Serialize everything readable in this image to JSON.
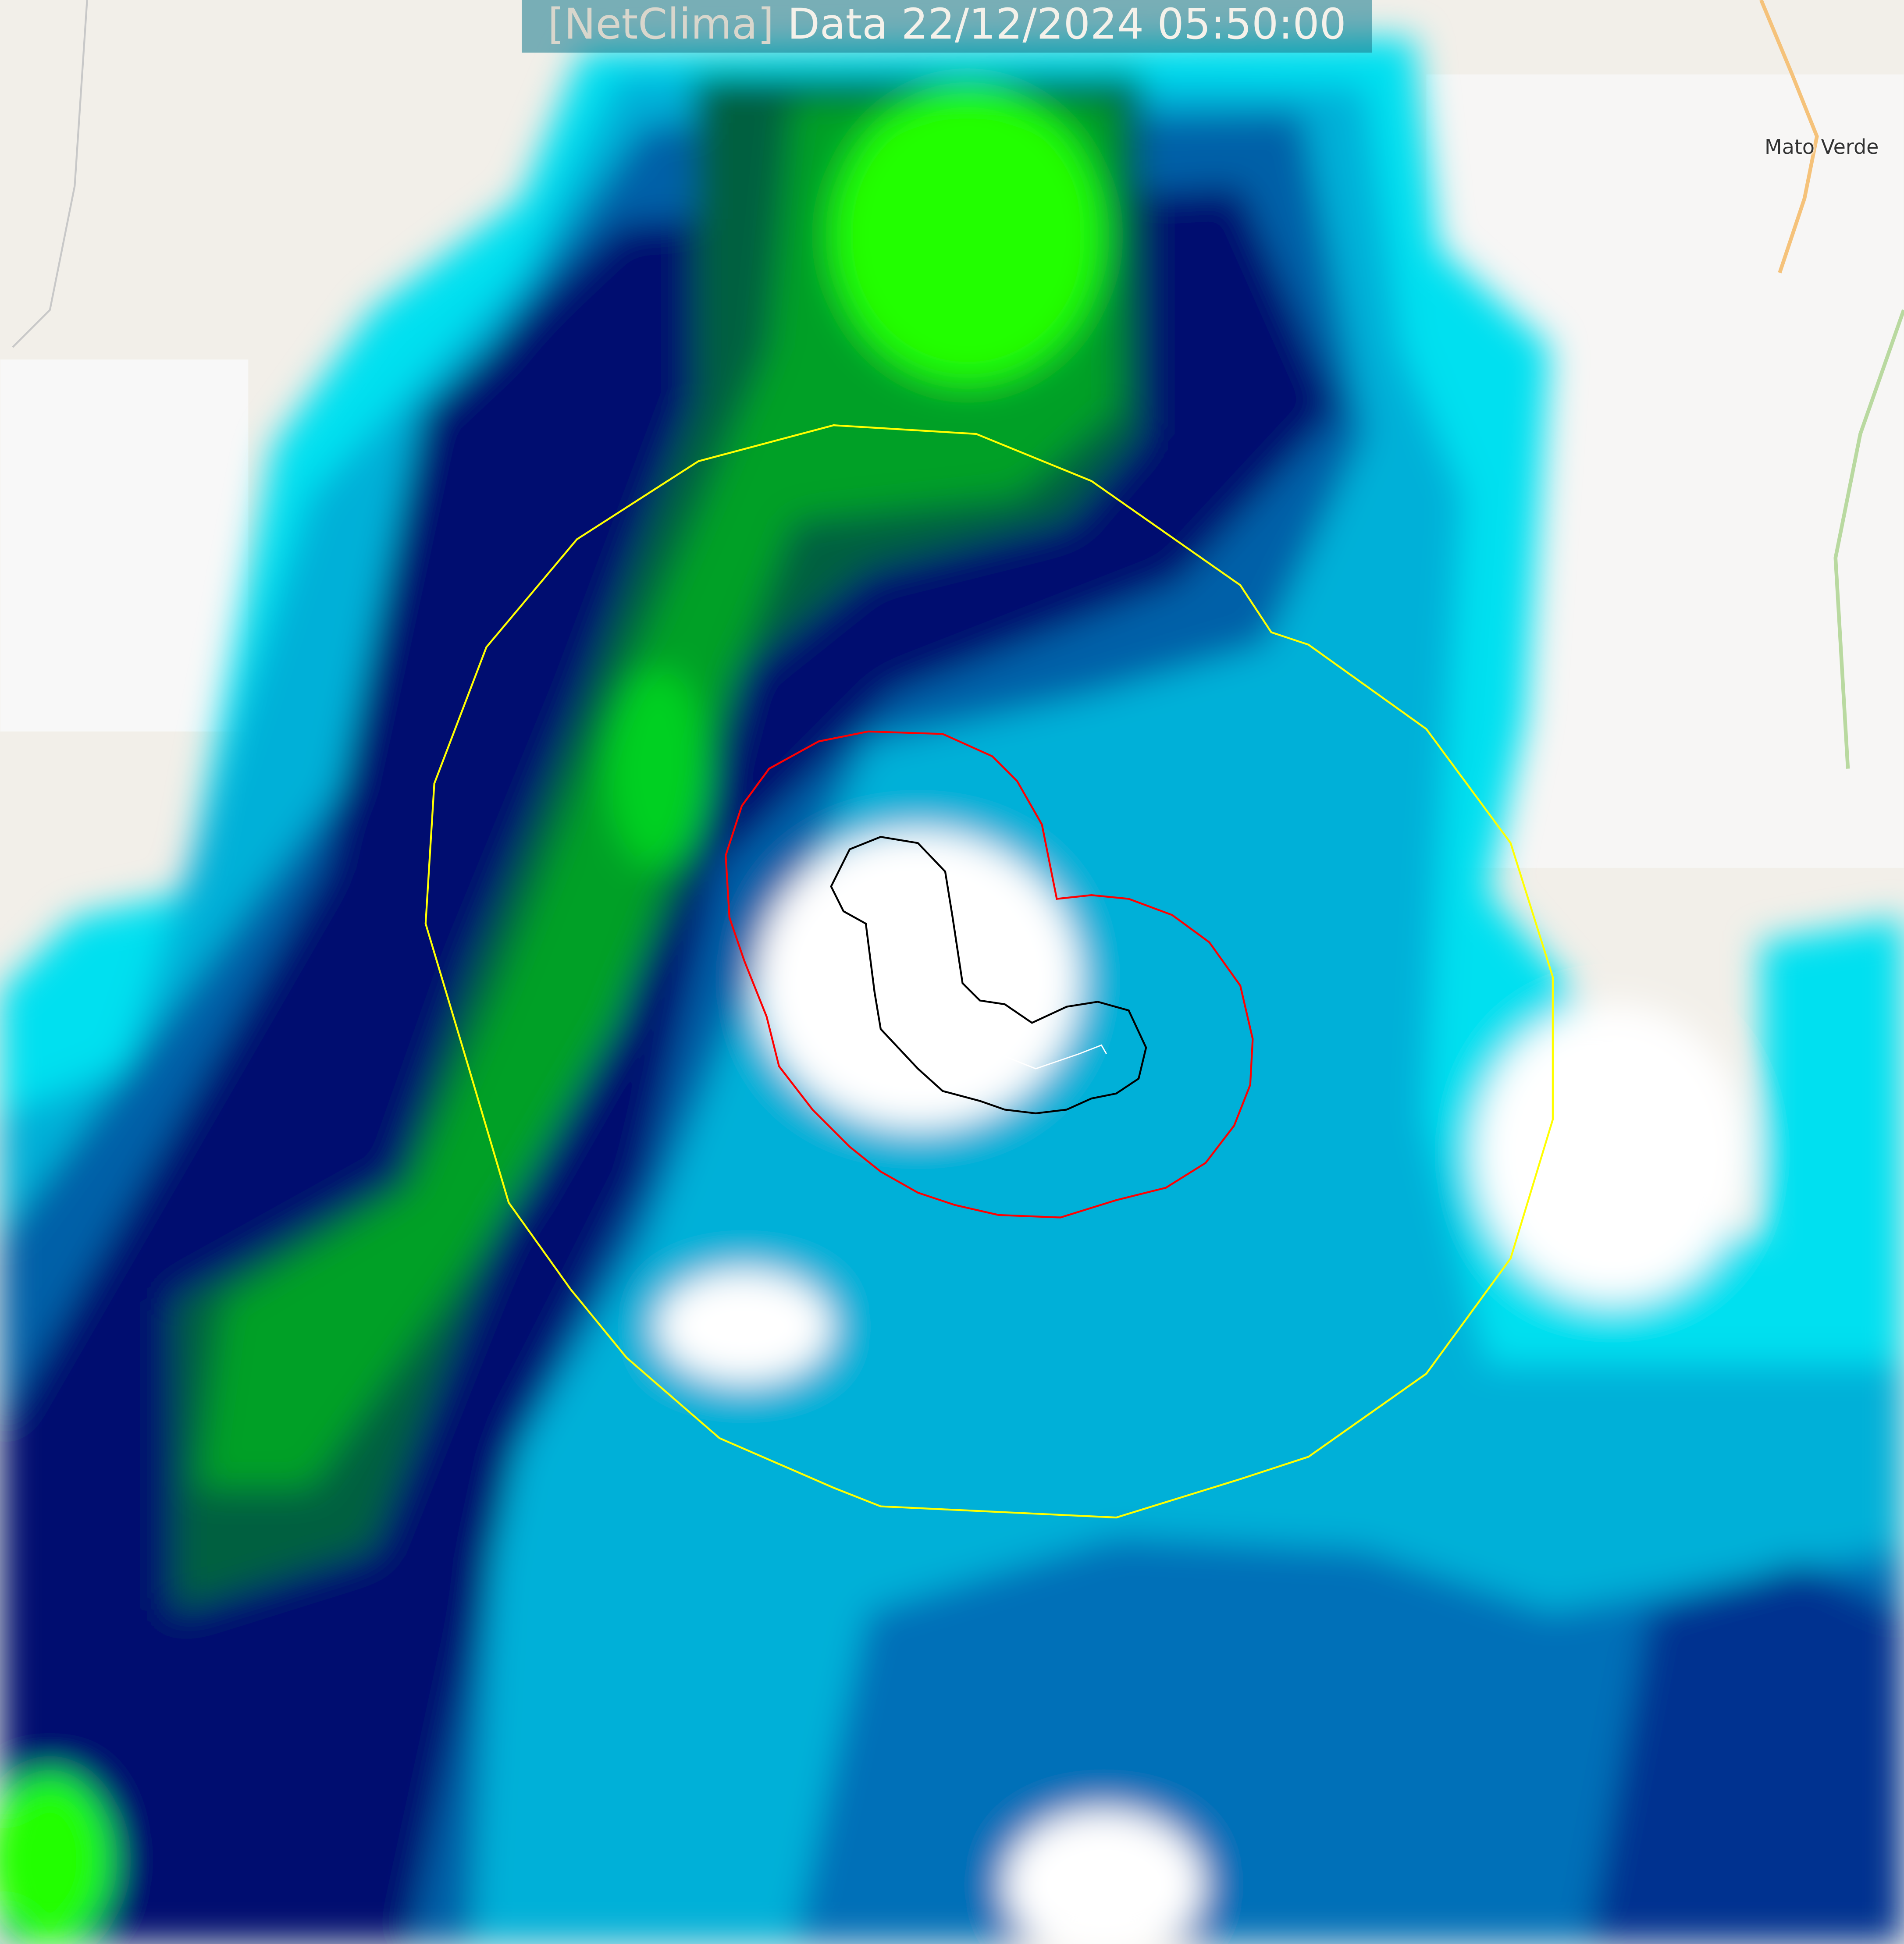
{
  "header": {
    "brand": "[NetClima]",
    "title": "Data 22/12/2024 05:50:00"
  },
  "map": {
    "places": [
      {
        "name": "Mato Verde"
      }
    ],
    "layers": [
      "radar-reflectivity",
      "range-ring-outer",
      "range-ring-middle",
      "range-ring-inner",
      "storm-track"
    ],
    "colors": {
      "outer_ring": "#ffff00",
      "middle_ring": "#ff0000",
      "inner_ring": "#000000",
      "track": "#ffffff",
      "radar_low": "#00ffff",
      "radar_mid": "#0090c8",
      "radar_high": "#000070",
      "radar_core": "#00c020",
      "radar_peak": "#20ff00",
      "basemap": "#f2efe9",
      "road": "#f5c27a"
    }
  }
}
